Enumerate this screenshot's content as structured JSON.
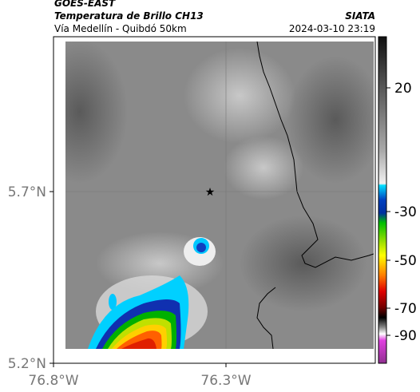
{
  "header": {
    "source": "GOES-EAST",
    "title": "Temperatura de Brillo CH13",
    "org": "SIATA",
    "region": "Vía Medellín - Quibdó 50km",
    "timestamp": "2024-03-10 23:19"
  },
  "axes": {
    "y_labels": [
      "5.7°N",
      "5.2°N"
    ],
    "x_labels": [
      "76.8°W",
      "76.3°W"
    ]
  },
  "colorbar": {
    "labels": [
      "20",
      "-30",
      "-50",
      "-70",
      "-90"
    ]
  }
}
